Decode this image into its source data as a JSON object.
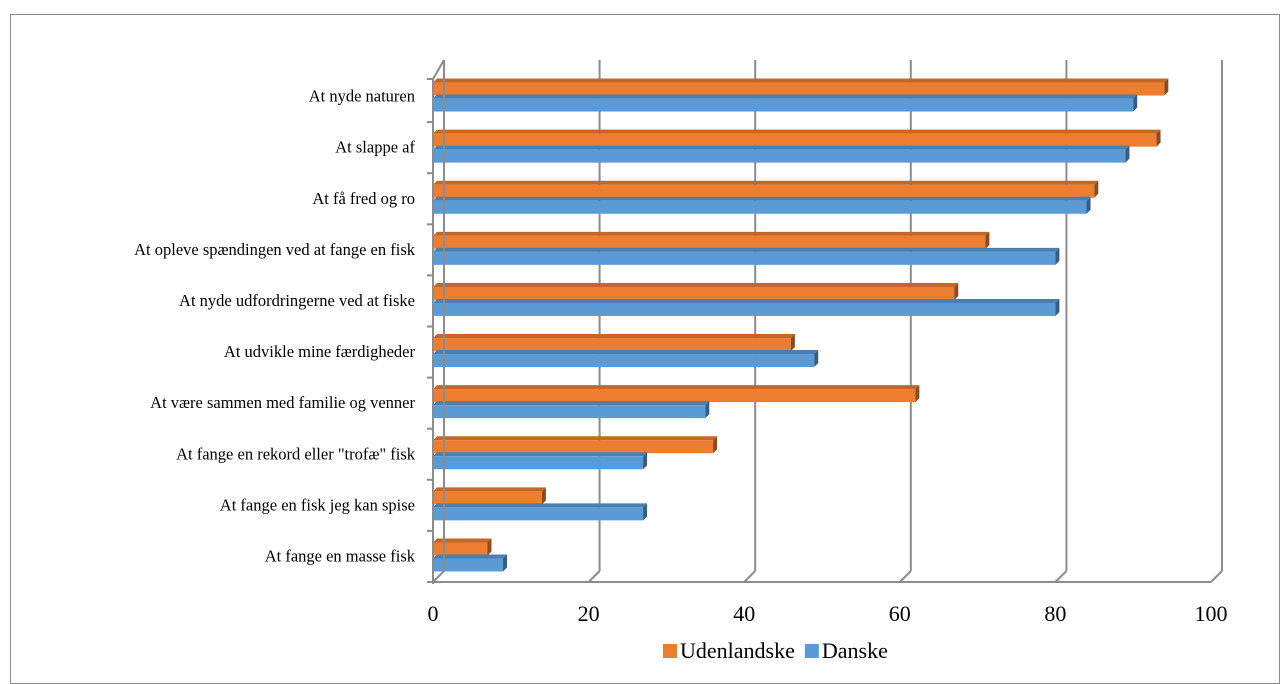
{
  "chart_data": {
    "type": "bar",
    "orientation": "horizontal",
    "style": "3d-clustered",
    "categories": [
      "At nyde naturen",
      "At slappe af",
      "At få fred og ro",
      "At opleve spændingen ved at fange en fisk",
      "At nyde udfordringerne ved at fiske",
      "At udvikle mine færdigheder ",
      "At være sammen med familie og venner",
      "At fange en rekord eller \"trofæ\" fisk",
      "At fange en fisk jeg kan spise",
      "At fange en masse fisk"
    ],
    "series": [
      {
        "name": "Udenlandske",
        "color": "#ED7D31",
        "values": [
          94,
          93,
          85,
          71,
          67,
          46,
          62,
          36,
          14,
          7
        ]
      },
      {
        "name": "Danske",
        "color": "#5B9BD5",
        "values": [
          90,
          89,
          84,
          80,
          80,
          49,
          35,
          27,
          27,
          9
        ]
      }
    ],
    "xlim": [
      0,
      100
    ],
    "xticks": [
      "0",
      "20",
      "40",
      "60",
      "80",
      "100"
    ],
    "grid": true,
    "legend": "bottom",
    "title": "",
    "xlabel": "",
    "ylabel": ""
  }
}
